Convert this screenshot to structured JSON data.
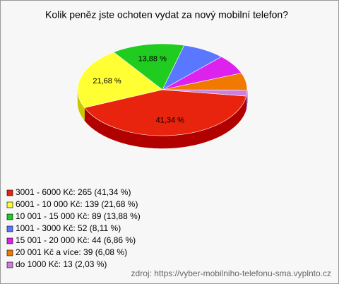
{
  "chart_data": {
    "type": "pie",
    "title": "Kolik peněz jste ochoten vydat za nový mobilní telefon?",
    "categories": [
      "3001 - 6000 Kč: 265 (41,34 %)",
      "6001 - 10 000 Kč: 139 (21,68 %)",
      "10 001 - 15 000 Kč: 89 (13,88 %)",
      "1001 - 3000 Kč: 52 (8,11 %)",
      "15 001 - 20 000 Kč: 44 (6,86 %)",
      "20 001 Kč a více: 39 (6,08 %)",
      "do 1000 Kč: 13 (2,03 %)"
    ],
    "values": [
      41.34,
      21.68,
      13.88,
      8.11,
      6.86,
      6.08,
      2.03
    ],
    "value_labels": [
      "41,34 %",
      "21,68 %",
      "13,88 %",
      null,
      null,
      null,
      null
    ],
    "colors": [
      "#e8240f",
      "#ffff33",
      "#1fcc1f",
      "#5a78ff",
      "#dd22ee",
      "#f07a00",
      "#cc7fdd"
    ],
    "side_colors": [
      "#b00000",
      "#c8c800",
      "#0d8f0d",
      "#2d47c0",
      "#9a10a8",
      "#b05800",
      "#9050a0"
    ],
    "source": "zdroj: https://vyber-mobilniho-telefonu-sma.vyplnto.cz"
  }
}
